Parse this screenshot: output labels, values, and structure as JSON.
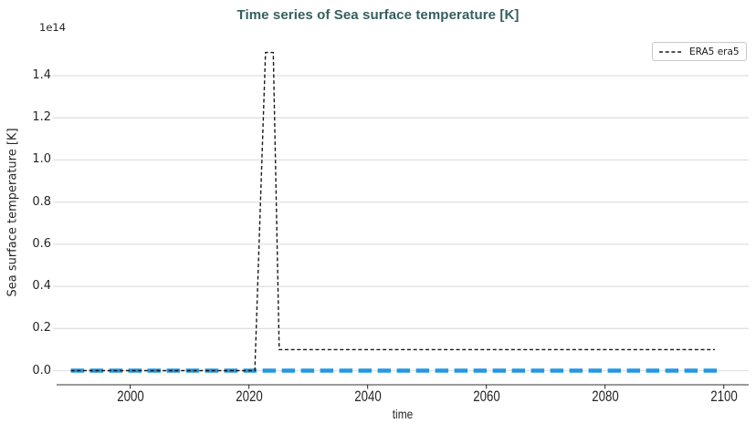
{
  "figure": {
    "background": "#ffffff",
    "title_color": "#355F5F",
    "text_color": "#262626",
    "grid_color": "#e1e1e1",
    "spine_color": "#333333"
  },
  "chart_data": {
    "type": "line",
    "title": "Time series of Sea surface temperature [K]",
    "xlabel": "time",
    "ylabel": "Sea surface temperature [K]",
    "y_offset_text": "1e14",
    "x_ticks": [
      2000,
      2020,
      2040,
      2060,
      2080,
      2100
    ],
    "y_ticks": [
      "0.0",
      "0.2",
      "0.4",
      "0.6",
      "0.8",
      "1.0",
      "1.2",
      "1.4"
    ],
    "xlim": [
      1987.6,
      2104.2
    ],
    "ylim": [
      -0.067,
      1.573
    ],
    "y_units": "1e14 K",
    "grid": "horizontal",
    "legend": {
      "position": "upper-right",
      "entries": [
        {
          "label": "ERA5 era5",
          "color": "#1a1a1a",
          "style": "dashed"
        }
      ]
    },
    "series": [
      {
        "name": "ERA5 era5",
        "color": "#1a1a1a",
        "style": "dashed",
        "width": 1.4,
        "points": [
          [
            1990,
            0.0
          ],
          [
            2021,
            0.0
          ],
          [
            2022.8,
            1.51
          ],
          [
            2024.1,
            1.51
          ],
          [
            2025.1,
            0.1
          ],
          [
            2098.5,
            0.1
          ]
        ]
      },
      {
        "name": "",
        "color": "#2497E2",
        "style": "dashed",
        "width": 4.5,
        "points": [
          [
            1990,
            0.0
          ],
          [
            2099,
            0.0
          ]
        ]
      }
    ]
  }
}
